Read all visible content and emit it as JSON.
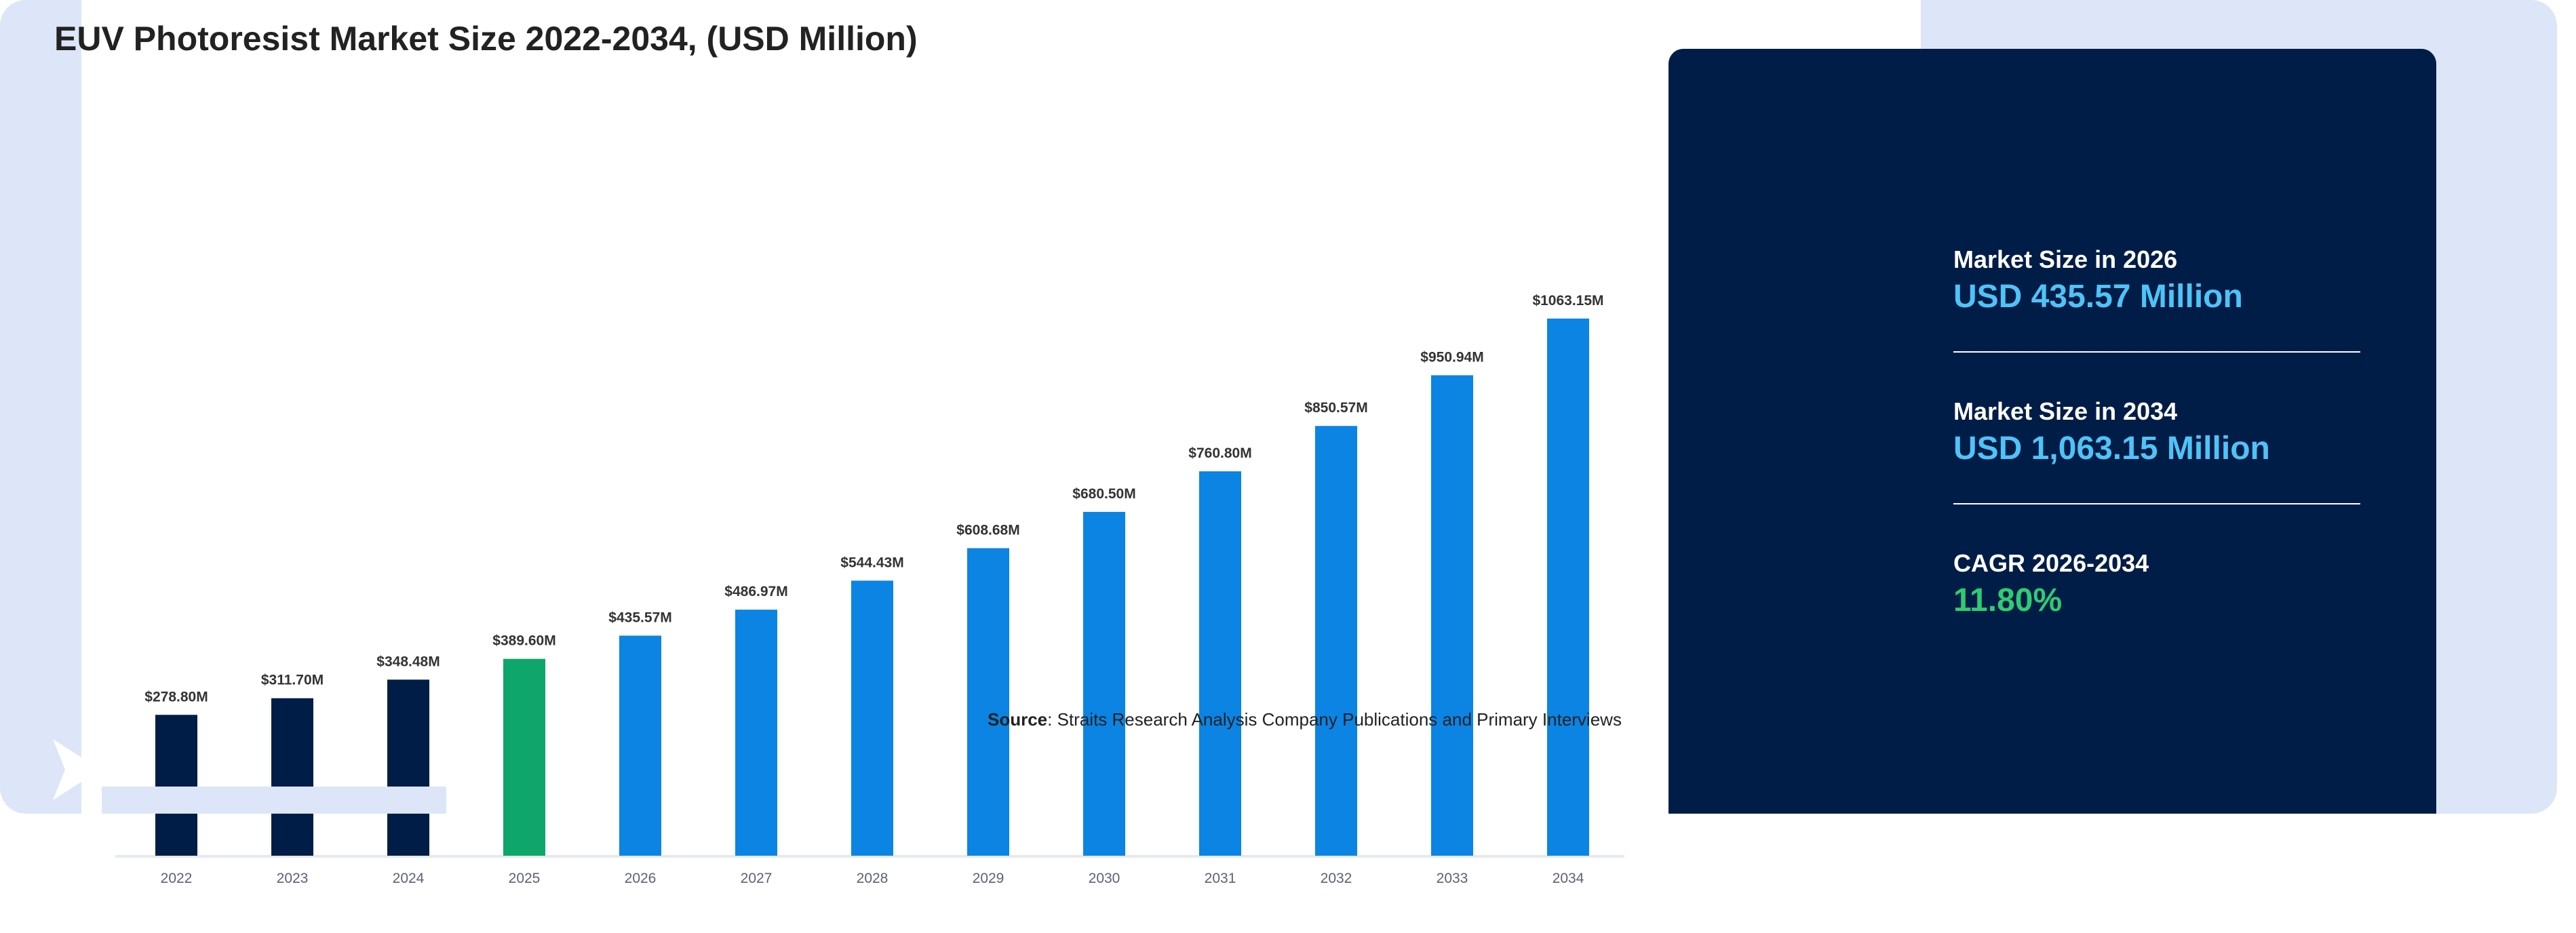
{
  "title": "EUV Photoresist Market Size 2022-2034, (USD Million)",
  "source": {
    "label": "Source",
    "text": ": Straits Research Analysis Company Publications and Primary Interviews"
  },
  "info_panel": {
    "stats": [
      {
        "label": "Market Size in 2026",
        "value": "USD 435.57 Million",
        "color": "#4fc3f7"
      },
      {
        "label": "Market Size in 2034",
        "value": "USD 1,063.15 Million",
        "color": "#4fc3f7"
      },
      {
        "label": "CAGR 2026-2034",
        "value": "11.80%",
        "color": "#2ecc71"
      }
    ],
    "background": "#001d47"
  },
  "colors": {
    "historical": "#001d47",
    "base_year": "#0fa66b",
    "forecast": "#0b84e3",
    "page_band": "#dce6f8"
  },
  "logo_icon": "brand-logo-icon",
  "chart_data": {
    "type": "bar",
    "categories": [
      "2022",
      "2023",
      "2024",
      "2025",
      "2026",
      "2027",
      "2028",
      "2029",
      "2030",
      "2031",
      "2032",
      "2033",
      "2034"
    ],
    "values": [
      278.8,
      311.7,
      348.48,
      389.6,
      435.57,
      486.97,
      544.43,
      608.68,
      680.5,
      760.8,
      850.57,
      950.94,
      1063.15
    ],
    "labels": [
      "$278.80M",
      "$311.70M",
      "$348.48M",
      "$389.60M",
      "$435.57M",
      "$486.97M",
      "$544.43M",
      "$608.68M",
      "$680.50M",
      "$760.80M",
      "$850.57M",
      "$950.94M",
      "$1063.15M"
    ],
    "bar_colors": [
      "#001d47",
      "#001d47",
      "#001d47",
      "#0fa66b",
      "#0b84e3",
      "#0b84e3",
      "#0b84e3",
      "#0b84e3",
      "#0b84e3",
      "#0b84e3",
      "#0b84e3",
      "#0b84e3",
      "#0b84e3"
    ],
    "title": "EUV Photoresist Market Size 2022-2034, (USD Million)",
    "xlabel": "",
    "ylabel": "",
    "ylim": [
      0,
      1130
    ],
    "grid": false,
    "legend": "none"
  }
}
